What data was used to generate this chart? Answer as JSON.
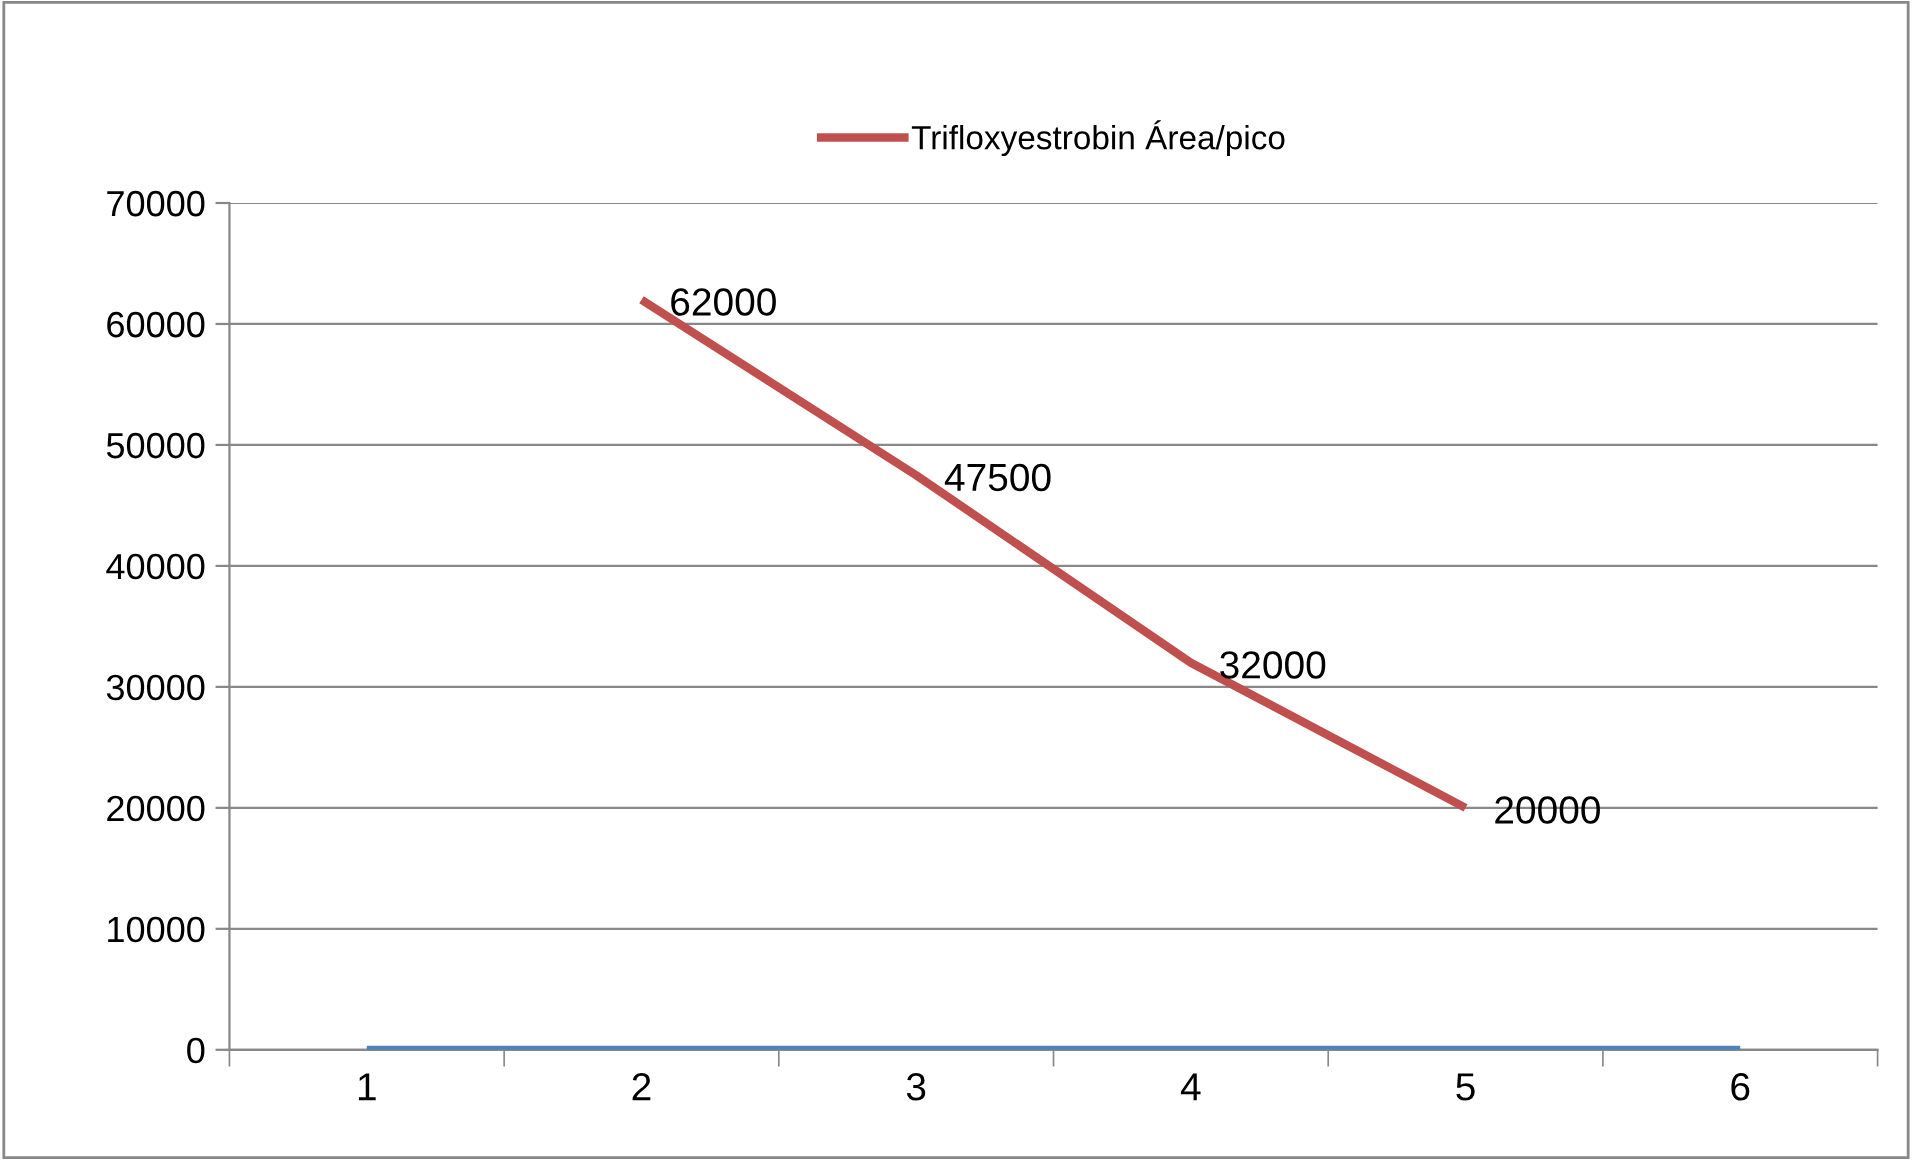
{
  "chart_data": {
    "type": "line",
    "categories": [
      "1",
      "2",
      "3",
      "4",
      "5",
      "6"
    ],
    "series": [
      {
        "name": "Trifloxyestrobin Área/pico",
        "color": "#c0504d",
        "values": [
          null,
          62000,
          47500,
          32000,
          20000,
          null
        ],
        "value_labels": [
          null,
          "62000",
          "47500",
          "32000",
          "20000",
          null
        ]
      },
      {
        "color": "#4f81bd",
        "values": [
          0,
          0,
          0,
          0,
          0,
          0
        ]
      }
    ],
    "ylim": [
      0,
      70000
    ],
    "yticks": [
      0,
      10000,
      20000,
      30000,
      40000,
      50000,
      60000,
      70000
    ],
    "grid": "y",
    "legend": "top",
    "marker": "none",
    "line_style": "solid"
  }
}
